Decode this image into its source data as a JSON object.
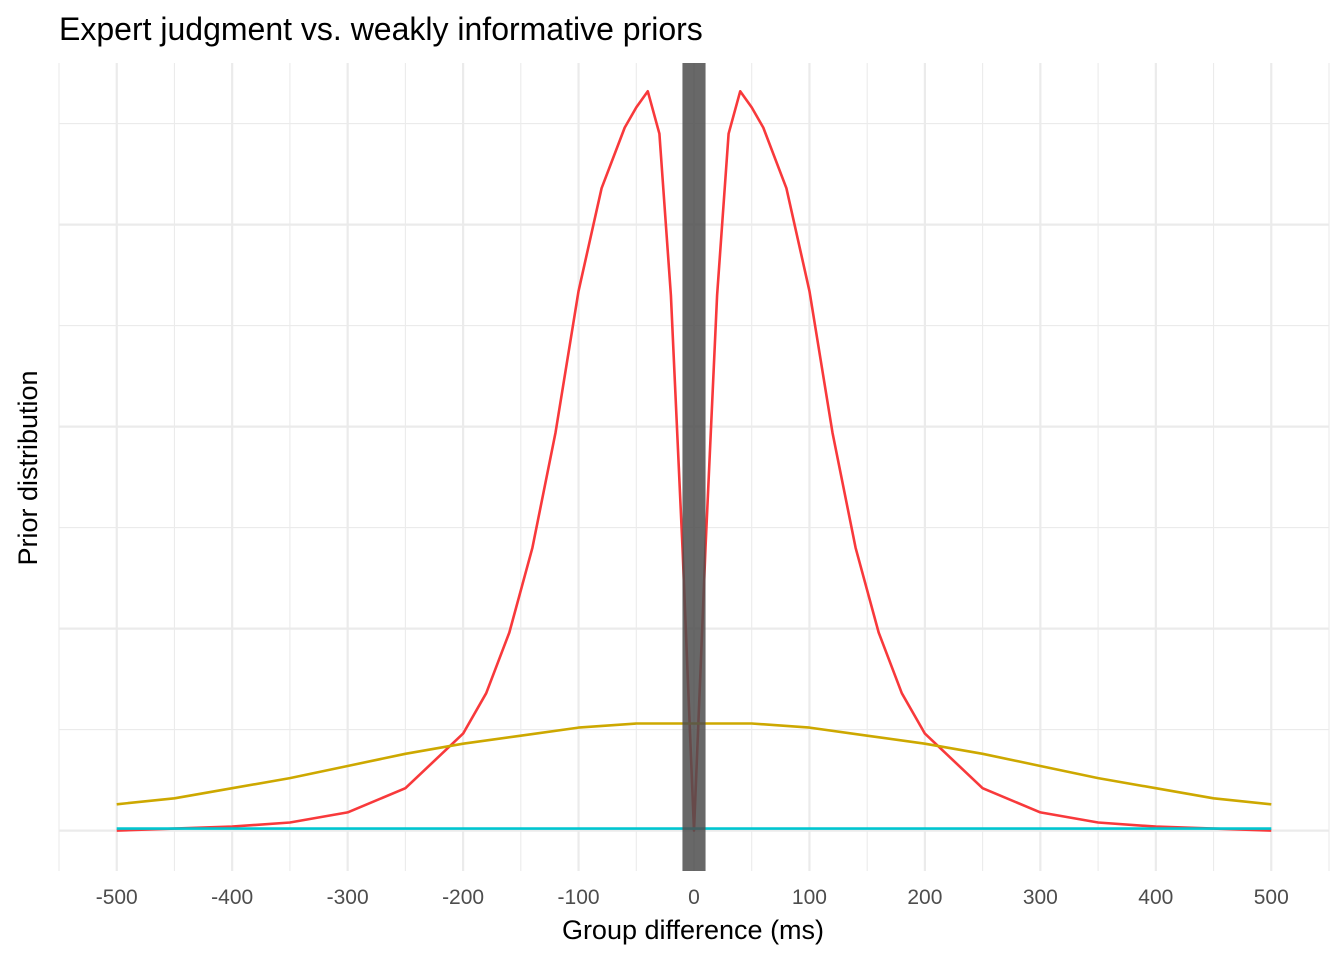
{
  "chart_data": {
    "type": "line",
    "title": "Expert judgment vs. weakly informative priors",
    "xlabel": "Group difference (ms)",
    "ylabel": "Prior distribution",
    "xlim": [
      -550,
      550
    ],
    "ylim": [
      -0.0002,
      0.0038
    ],
    "x_ticks": [
      -500,
      -400,
      -300,
      -200,
      -100,
      0,
      100,
      200,
      300,
      400,
      500
    ],
    "x_tick_labels": [
      "-500",
      "-400",
      "-300",
      "-200",
      "-100",
      "0",
      "100",
      "200",
      "300",
      "400",
      "500"
    ],
    "y_tick_labels_visible": false,
    "grid": true,
    "legend": "none",
    "highlight_band": {
      "x_range": [
        -10,
        10
      ],
      "color": "#4d4d4d"
    },
    "series": [
      {
        "color": "#F8393B",
        "x": [
          -500,
          -450,
          -400,
          -350,
          -300,
          -250,
          -200,
          -180,
          -160,
          -140,
          -120,
          -100,
          -80,
          -60,
          -50,
          -40,
          -30,
          -20,
          -10,
          0,
          10,
          20,
          30,
          40,
          50,
          60,
          80,
          100,
          120,
          140,
          160,
          180,
          200,
          250,
          300,
          350,
          400,
          450,
          500
        ],
        "y": [
          0.0,
          1e-05,
          2e-05,
          4e-05,
          9e-05,
          0.00021,
          0.00048,
          0.00068,
          0.00098,
          0.0014,
          0.00197,
          0.00267,
          0.00318,
          0.00348,
          0.00358,
          0.00366,
          0.00345,
          0.00265,
          0.0014,
          0.0,
          0.0014,
          0.00265,
          0.00345,
          0.00366,
          0.00358,
          0.00348,
          0.00318,
          0.00267,
          0.00197,
          0.0014,
          0.00098,
          0.00068,
          0.00048,
          0.00021,
          9e-05,
          4e-05,
          2e-05,
          1e-05,
          0.0
        ]
      },
      {
        "color": "#CDA800",
        "x": [
          -500,
          -450,
          -400,
          -350,
          -300,
          -250,
          -200,
          -150,
          -100,
          -50,
          0,
          50,
          100,
          150,
          200,
          250,
          300,
          350,
          400,
          450,
          500
        ],
        "y": [
          0.00013,
          0.00016,
          0.00021,
          0.00026,
          0.00032,
          0.00038,
          0.00043,
          0.00047,
          0.00051,
          0.00053,
          0.00053,
          0.00053,
          0.00051,
          0.00047,
          0.00043,
          0.00038,
          0.00032,
          0.00026,
          0.00021,
          0.00016,
          0.00013
        ]
      },
      {
        "color": "#00C6D0",
        "x": [
          -500,
          500
        ],
        "y": [
          1e-05,
          1e-05
        ]
      }
    ]
  }
}
